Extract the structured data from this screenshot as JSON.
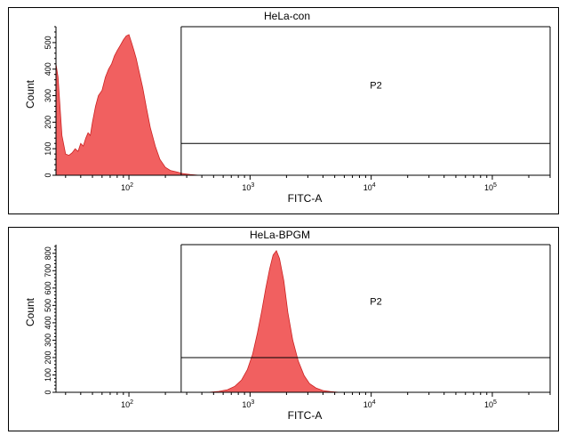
{
  "chart_data": [
    {
      "type": "area",
      "title": "HeLa-con",
      "xlabel": "FITC-A",
      "ylabel": "Count",
      "x_scale": "log",
      "xlim": [
        25,
        300000
      ],
      "ylim": [
        0,
        560
      ],
      "x_ticks": [
        {
          "base": "10",
          "exp": "2",
          "value": 100
        },
        {
          "base": "10",
          "exp": "3",
          "value": 1000
        },
        {
          "base": "10",
          "exp": "4",
          "value": 10000
        },
        {
          "base": "10",
          "exp": "5",
          "value": 100000
        }
      ],
      "y_ticks": [
        "0",
        "100",
        "200",
        "300",
        "400",
        "500"
      ],
      "gate": {
        "label": "P2",
        "x_min": 270,
        "count_level": 120
      },
      "color": "#ee4444",
      "series": [
        {
          "x": [
            25,
            26,
            28,
            30,
            32,
            34,
            36,
            38,
            40,
            42,
            44,
            46,
            48,
            50,
            53,
            56,
            60,
            64,
            68,
            72,
            76,
            80,
            85,
            90,
            95,
            100,
            105,
            110,
            115,
            120,
            130,
            140,
            150,
            165,
            180,
            200,
            220,
            250,
            280,
            320,
            380
          ],
          "values": [
            420,
            370,
            150,
            80,
            75,
            85,
            100,
            90,
            120,
            110,
            140,
            160,
            150,
            200,
            260,
            300,
            320,
            370,
            400,
            420,
            450,
            470,
            490,
            510,
            525,
            530,
            500,
            470,
            440,
            400,
            330,
            250,
            180,
            110,
            60,
            30,
            18,
            12,
            6,
            3,
            0
          ]
        }
      ]
    },
    {
      "type": "area",
      "title": "HeLa-BPGM",
      "xlabel": "FITC-A",
      "ylabel": "Count",
      "x_scale": "log",
      "xlim": [
        25,
        300000
      ],
      "ylim": [
        0,
        850
      ],
      "x_ticks": [
        {
          "base": "10",
          "exp": "2",
          "value": 100
        },
        {
          "base": "10",
          "exp": "3",
          "value": 1000
        },
        {
          "base": "10",
          "exp": "4",
          "value": 10000
        },
        {
          "base": "10",
          "exp": "5",
          "value": 100000
        }
      ],
      "y_ticks": [
        "0",
        "100",
        "200",
        "300",
        "400",
        "500",
        "600",
        "700",
        "800"
      ],
      "gate": {
        "label": "P2",
        "x_min": 270,
        "count_level": 200
      },
      "color": "#ee4444",
      "series": [
        {
          "x": [
            450,
            550,
            650,
            750,
            850,
            950,
            1050,
            1150,
            1250,
            1350,
            1450,
            1550,
            1650,
            1750,
            1900,
            2050,
            2250,
            2500,
            2800,
            3100,
            3500,
            4000,
            4600,
            5500
          ],
          "values": [
            0,
            5,
            15,
            35,
            70,
            130,
            220,
            340,
            470,
            600,
            710,
            790,
            815,
            770,
            640,
            460,
            300,
            180,
            95,
            50,
            25,
            10,
            4,
            0
          ]
        }
      ]
    }
  ]
}
